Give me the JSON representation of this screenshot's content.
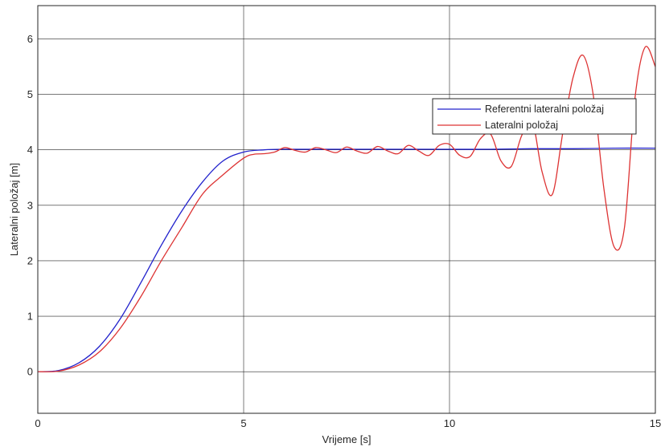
{
  "chart_data": {
    "type": "line",
    "title": "",
    "xlabel": "Vrijeme [s]",
    "ylabel": "Lateralni položaj [m]",
    "xlim": [
      0,
      15
    ],
    "ylim": [
      -0.75,
      6.6
    ],
    "xticks": [
      0,
      5,
      10,
      15
    ],
    "yticks": [
      0,
      1,
      2,
      3,
      4,
      5,
      6
    ],
    "grid": true,
    "legend_position": "upper-right",
    "series": [
      {
        "name": "Referentni lateralni položaj",
        "color": "#2222cc",
        "x": [
          0,
          0.5,
          1,
          1.5,
          2,
          2.5,
          3,
          3.5,
          4,
          4.5,
          5,
          5.5,
          6,
          7,
          8,
          9,
          10,
          11,
          12,
          13,
          14,
          15
        ],
        "y": [
          0,
          0.02,
          0.16,
          0.46,
          0.95,
          1.6,
          2.28,
          2.9,
          3.42,
          3.8,
          3.96,
          4.0,
          4.01,
          4.01,
          4.01,
          4.01,
          4.01,
          4.01,
          4.02,
          4.02,
          4.03,
          4.03
        ]
      },
      {
        "name": "Lateralni položaj",
        "color": "#dd3333",
        "x": [
          0,
          0.5,
          1,
          1.5,
          2,
          2.5,
          3,
          3.5,
          4,
          4.5,
          5,
          5.25,
          5.5,
          5.75,
          6,
          6.25,
          6.5,
          6.75,
          7,
          7.25,
          7.5,
          7.75,
          8,
          8.25,
          8.5,
          8.75,
          9,
          9.25,
          9.5,
          9.75,
          10,
          10.25,
          10.5,
          10.75,
          11,
          11.25,
          11.5,
          11.75,
          12,
          12.25,
          12.5,
          12.75,
          13,
          13.25,
          13.5,
          13.75,
          14,
          14.25,
          14.5,
          14.75,
          15
        ],
        "y": [
          0,
          0.01,
          0.12,
          0.36,
          0.78,
          1.35,
          2.0,
          2.6,
          3.2,
          3.55,
          3.85,
          3.92,
          3.93,
          3.96,
          4.04,
          3.99,
          3.96,
          4.04,
          4.0,
          3.95,
          4.05,
          3.98,
          3.94,
          4.06,
          3.98,
          3.93,
          4.08,
          3.98,
          3.9,
          4.08,
          4.1,
          3.9,
          3.88,
          4.2,
          4.28,
          3.8,
          3.7,
          4.25,
          4.55,
          3.6,
          3.2,
          4.3,
          5.3,
          5.7,
          4.95,
          3.3,
          2.25,
          2.6,
          4.9,
          5.85,
          5.5
        ]
      }
    ]
  }
}
